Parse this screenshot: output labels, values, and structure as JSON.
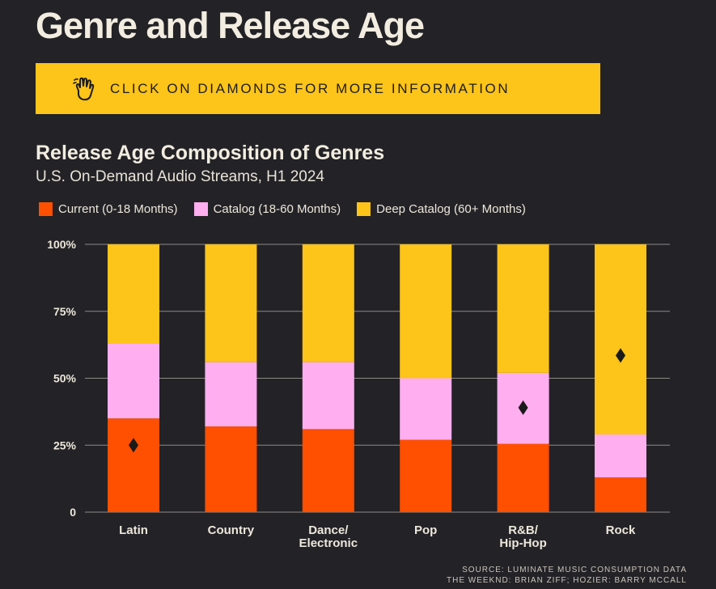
{
  "page_title": "Genre and Release Age",
  "banner": {
    "text": "CLICK ON DIAMONDS FOR MORE INFORMATION",
    "icon": "hand-pointer-icon",
    "background": "#fdc41a"
  },
  "source": {
    "line1": "SOURCE: LUMINATE MUSIC CONSUMPTION DATA",
    "line2": "THE WEEKND: BRIAN ZIFF; HOZIER: BARRY MCCALL"
  },
  "chart_data": {
    "type": "bar",
    "stacked": true,
    "title": "Release Age Composition of Genres",
    "subtitle": "U.S. On-Demand Audio Streams, H1 2024",
    "categories": [
      "Latin",
      "Country",
      "Dance/\nElectronic",
      "Pop",
      "R&B/\nHip-Hop",
      "Rock"
    ],
    "series": [
      {
        "name": "Current (0-18 Months)",
        "color": "#ff4f00",
        "values": [
          35,
          32,
          31,
          27,
          25.5,
          13
        ]
      },
      {
        "name": "Catalog (18-60 Months)",
        "color": "#ffaef0",
        "values": [
          28,
          24,
          25,
          23,
          26.5,
          16
        ]
      },
      {
        "name": "Deep Catalog (60+ Months)",
        "color": "#fdc41a",
        "values": [
          37,
          44,
          44,
          50,
          48,
          71
        ]
      }
    ],
    "y_ticks": [
      "0",
      "25%",
      "50%",
      "75%",
      "100%"
    ],
    "ylim": [
      0,
      100
    ],
    "grid": true,
    "legend_position": "top-left",
    "markers": [
      {
        "category": "Latin",
        "value": 25
      },
      {
        "category": "R&B/\nHip-Hop",
        "value": 39
      },
      {
        "category": "Rock",
        "value": 58.5
      }
    ]
  }
}
